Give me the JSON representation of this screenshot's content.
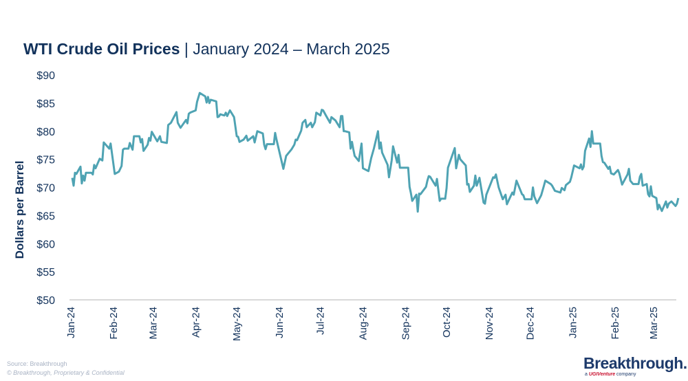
{
  "title": {
    "bold": "WTI Crude Oil Prices",
    "rest": " | January 2024 – March 2025"
  },
  "footer": {
    "source": "Source: Breakthrough",
    "copyright": "© Breakthrough, Proprietary & Confidential"
  },
  "logo": {
    "name": "Breakthrough.",
    "sub_prefix": "a ",
    "sub_brand": "UGIVenture",
    "sub_suffix": " company"
  },
  "chart_data": {
    "type": "line",
    "title": "WTI Crude Oil Prices | January 2024 – March 2025",
    "xlabel": "",
    "ylabel": "Dollars per Barrel",
    "ylim": [
      50,
      90
    ],
    "yticks": [
      50,
      55,
      60,
      65,
      70,
      75,
      80,
      85,
      90
    ],
    "ytick_labels": [
      "$50",
      "$55",
      "$60",
      "$65",
      "$70",
      "$75",
      "$80",
      "$85",
      "$90"
    ],
    "xticks": [
      "2024-01-01",
      "2024-02-01",
      "2024-03-01",
      "2024-04-01",
      "2024-05-01",
      "2024-06-01",
      "2024-07-01",
      "2024-08-01",
      "2024-09-01",
      "2024-10-01",
      "2024-11-01",
      "2024-12-01",
      "2025-01-01",
      "2025-02-01",
      "2025-03-01"
    ],
    "xtick_labels": [
      "Jan-24",
      "Feb-24",
      "Mar-24",
      "Apr-24",
      "May-24",
      "Jun-24",
      "Jul-24",
      "Aug-24",
      "Sep-24",
      "Oct-24",
      "Nov-24",
      "Dec-24",
      "Jan-25",
      "Feb-25",
      "Mar-25"
    ],
    "grid": false,
    "line_color": "#4fa3b3",
    "text_color": "#12325b",
    "series": [
      {
        "dates": [
          "2024-01-02",
          "2024-01-03",
          "2024-01-04",
          "2024-01-05",
          "2024-01-08",
          "2024-01-09",
          "2024-01-10",
          "2024-01-11",
          "2024-01-12",
          "2024-01-16",
          "2024-01-17",
          "2024-01-18",
          "2024-01-19",
          "2024-01-22",
          "2024-01-24",
          "2024-01-25",
          "2024-01-29",
          "2024-01-30",
          "2024-02-02",
          "2024-02-05",
          "2024-02-07",
          "2024-02-08",
          "2024-02-09",
          "2024-02-12",
          "2024-02-13",
          "2024-02-15",
          "2024-02-16",
          "2024-02-20",
          "2024-02-21",
          "2024-02-22",
          "2024-02-23",
          "2024-02-26",
          "2024-02-27",
          "2024-02-28",
          "2024-02-29",
          "2024-03-04",
          "2024-03-06",
          "2024-03-07",
          "2024-03-11",
          "2024-03-12",
          "2024-03-14",
          "2024-03-18",
          "2024-03-19",
          "2024-03-21",
          "2024-03-25",
          "2024-03-26",
          "2024-03-27",
          "2024-03-28",
          "2024-04-01",
          "2024-04-02",
          "2024-04-04",
          "2024-04-08",
          "2024-04-09",
          "2024-04-10",
          "2024-04-11",
          "2024-04-12",
          "2024-04-16",
          "2024-04-17",
          "2024-04-18",
          "2024-04-19",
          "2024-04-22",
          "2024-04-23",
          "2024-04-24",
          "2024-04-26",
          "2024-04-29",
          "2024-05-01",
          "2024-05-02",
          "2024-05-03",
          "2024-05-06",
          "2024-05-08",
          "2024-05-09",
          "2024-05-13",
          "2024-05-14",
          "2024-05-16",
          "2024-05-20",
          "2024-05-21",
          "2024-05-22",
          "2024-05-23",
          "2024-05-28",
          "2024-05-29",
          "2024-05-30",
          "2024-06-04",
          "2024-06-06",
          "2024-06-10",
          "2024-06-12",
          "2024-06-13",
          "2024-06-14",
          "2024-06-17",
          "2024-06-18",
          "2024-06-20",
          "2024-06-21",
          "2024-06-24",
          "2024-06-25",
          "2024-06-27",
          "2024-06-28",
          "2024-07-01",
          "2024-07-02",
          "2024-07-03",
          "2024-07-05",
          "2024-07-08",
          "2024-07-09",
          "2024-07-12",
          "2024-07-15",
          "2024-07-16",
          "2024-07-17",
          "2024-07-18",
          "2024-07-19",
          "2024-07-22",
          "2024-07-23",
          "2024-07-24",
          "2024-07-25",
          "2024-07-26",
          "2024-07-29",
          "2024-07-31",
          "2024-08-01",
          "2024-08-05",
          "2024-08-07",
          "2024-08-09",
          "2024-08-12",
          "2024-08-13",
          "2024-08-14",
          "2024-08-15",
          "2024-08-19",
          "2024-08-20",
          "2024-08-22",
          "2024-08-23",
          "2024-08-26",
          "2024-08-27",
          "2024-08-28",
          "2024-09-03",
          "2024-09-04",
          "2024-09-05",
          "2024-09-06",
          "2024-09-09",
          "2024-09-10",
          "2024-09-11",
          "2024-09-12",
          "2024-09-16",
          "2024-09-17",
          "2024-09-18",
          "2024-09-19",
          "2024-09-23",
          "2024-09-24",
          "2024-09-26",
          "2024-09-27",
          "2024-09-30",
          "2024-10-01",
          "2024-10-02",
          "2024-10-07",
          "2024-10-08",
          "2024-10-10",
          "2024-10-11",
          "2024-10-15",
          "2024-10-16",
          "2024-10-17",
          "2024-10-18",
          "2024-10-21",
          "2024-10-22",
          "2024-10-23",
          "2024-10-25",
          "2024-10-28",
          "2024-10-29",
          "2024-10-30",
          "2024-11-04",
          "2024-11-05",
          "2024-11-06",
          "2024-11-08",
          "2024-11-11",
          "2024-11-13",
          "2024-11-14",
          "2024-11-18",
          "2024-11-19",
          "2024-11-21",
          "2024-11-25",
          "2024-11-26",
          "2024-11-27",
          "2024-12-02",
          "2024-12-03",
          "2024-12-04",
          "2024-12-06",
          "2024-12-09",
          "2024-12-11",
          "2024-12-12",
          "2024-12-16",
          "2024-12-17",
          "2024-12-19",
          "2024-12-23",
          "2024-12-24",
          "2024-12-26",
          "2024-12-27",
          "2024-12-30",
          "2024-12-31",
          "2025-01-02",
          "2025-01-06",
          "2025-01-07",
          "2025-01-08",
          "2025-01-09",
          "2025-01-10",
          "2025-01-13",
          "2025-01-14",
          "2025-01-15",
          "2025-01-16",
          "2025-01-21",
          "2025-01-22",
          "2025-01-23",
          "2025-01-24",
          "2025-01-27",
          "2025-01-28",
          "2025-01-29",
          "2025-01-31",
          "2025-02-03",
          "2025-02-04",
          "2025-02-06",
          "2025-02-10",
          "2025-02-11",
          "2025-02-12",
          "2025-02-14",
          "2025-02-18",
          "2025-02-19",
          "2025-02-20",
          "2025-02-21",
          "2025-02-24",
          "2025-02-25",
          "2025-02-26",
          "2025-02-27",
          "2025-02-28",
          "2025-03-03",
          "2025-03-04",
          "2025-03-05",
          "2025-03-07",
          "2025-03-10",
          "2025-03-11",
          "2025-03-12",
          "2025-03-14",
          "2025-03-17",
          "2025-03-18",
          "2025-03-19"
        ],
        "values": [
          71.7,
          70.3,
          72.6,
          72.4,
          73.7,
          70.7,
          72.1,
          71.2,
          72.6,
          72.6,
          72.3,
          74.0,
          73.4,
          75.1,
          74.8,
          78.0,
          76.9,
          77.8,
          72.4,
          72.8,
          73.8,
          76.7,
          76.9,
          76.9,
          77.9,
          76.7,
          79.1,
          79.1,
          78.0,
          78.6,
          76.5,
          77.6,
          78.8,
          78.3,
          79.9,
          78.2,
          79.1,
          78.1,
          77.9,
          81.1,
          81.5,
          83.4,
          81.5,
          80.6,
          82.0,
          81.4,
          83.1,
          83.3,
          83.7,
          85.2,
          86.8,
          86.2,
          85.1,
          86.1,
          85.0,
          85.6,
          85.3,
          82.5,
          82.6,
          83.0,
          82.8,
          83.3,
          82.7,
          83.7,
          82.5,
          79.1,
          79.0,
          78.1,
          78.5,
          79.2,
          78.3,
          79.1,
          78.0,
          80.0,
          79.6,
          77.6,
          76.8,
          77.7,
          77.7,
          79.7,
          78.5,
          73.3,
          75.6,
          76.8,
          77.6,
          78.5,
          78.4,
          80.1,
          81.5,
          82.0,
          80.7,
          81.5,
          80.7,
          81.6,
          83.3,
          82.8,
          83.8,
          83.7,
          82.8,
          81.5,
          82.5,
          81.9,
          80.7,
          82.7,
          82.7,
          80.0,
          80.0,
          79.8,
          76.9,
          78.1,
          76.8,
          75.6,
          74.7,
          77.8,
          73.4,
          72.9,
          75.2,
          76.9,
          80.0,
          76.9,
          78.0,
          76.2,
          74.0,
          71.8,
          74.8,
          77.3,
          74.4,
          75.8,
          73.5,
          73.5,
          70.1,
          69.0,
          67.6,
          68.7,
          65.7,
          68.9,
          68.8,
          70.1,
          71.2,
          72.0,
          71.9,
          70.3,
          71.5,
          67.6,
          68.0,
          68.0,
          69.9,
          73.5,
          77.0,
          73.4,
          75.8,
          75.0,
          73.9,
          70.5,
          70.6,
          69.2,
          70.3,
          72.1,
          70.3,
          71.7,
          67.3,
          67.1,
          68.7,
          71.8,
          71.7,
          72.3,
          70.0,
          67.9,
          68.7,
          67.0,
          69.1,
          68.7,
          71.2,
          68.8,
          68.6,
          67.9,
          67.9,
          70.0,
          68.4,
          67.2,
          68.6,
          70.3,
          71.2,
          70.6,
          70.3,
          69.4,
          69.1,
          69.9,
          69.5,
          70.4,
          71.0,
          71.8,
          73.9,
          73.4,
          74.1,
          73.2,
          73.7,
          76.5,
          78.7,
          77.2,
          80.0,
          77.8,
          77.8,
          75.6,
          74.5,
          74.4,
          73.3,
          73.7,
          72.5,
          72.3,
          73.1,
          72.5,
          70.5,
          72.3,
          73.3,
          71.2,
          70.6,
          70.6,
          71.9,
          72.4,
          70.3,
          70.6,
          68.8,
          68.4,
          70.2,
          68.5,
          68.1,
          66.1,
          66.9,
          65.8,
          67.5,
          66.4,
          67.1,
          67.5,
          66.7,
          67.1,
          68.1
        ]
      }
    ]
  }
}
